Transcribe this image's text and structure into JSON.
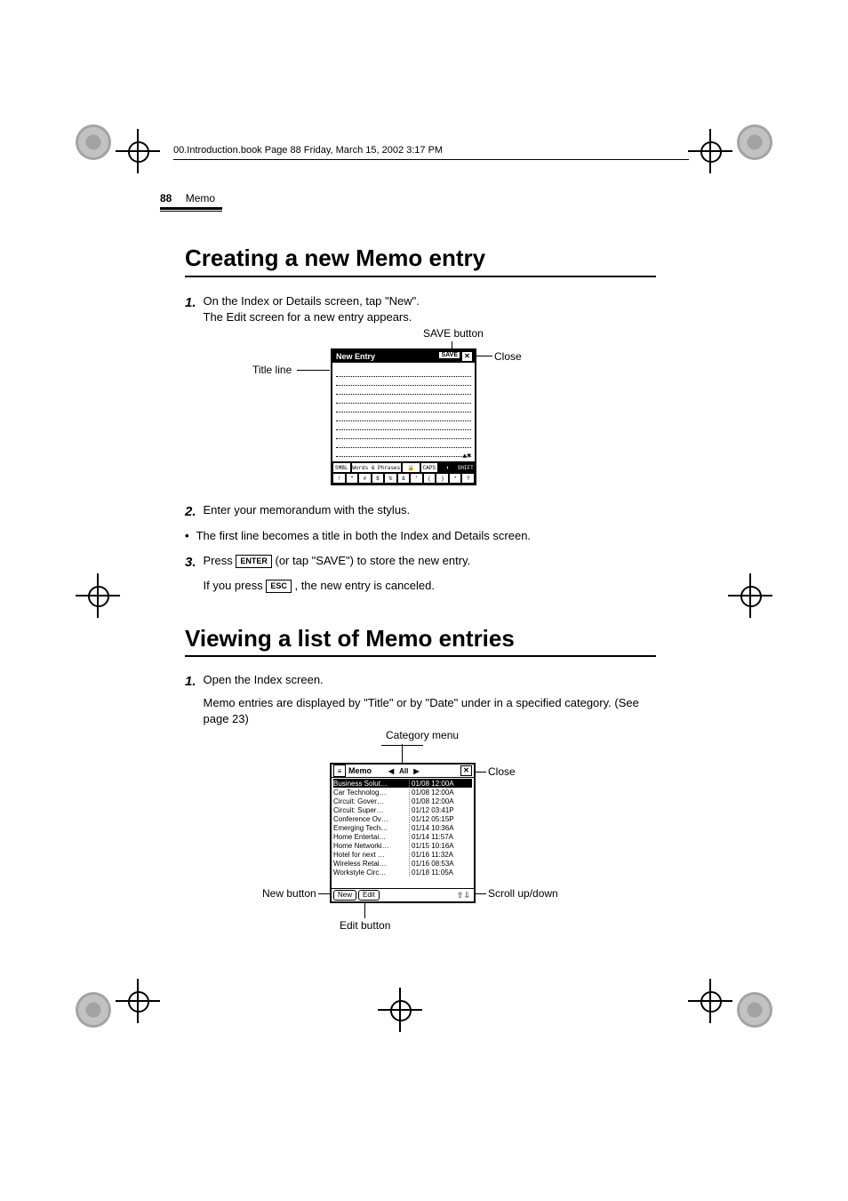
{
  "header_file_line": "00.Introduction.book  Page 88  Friday, March 15, 2002  3:17 PM",
  "running_head": {
    "page_number": "88",
    "section": "Memo"
  },
  "section1": {
    "title": "Creating a new Memo entry",
    "step1_a": "On the Index or Details screen, tap \"New\".",
    "step1_b": "The Edit screen for a new entry appears.",
    "step2": "Enter your memorandum with the stylus.",
    "bullet": "The first line becomes a title in both the Index and Details screen.",
    "step3_a": "Press ",
    "step3_b": " (or tap \"SAVE\") to store the new entry.",
    "step3_c": "If you press ",
    "step3_d": ", the new entry is canceled.",
    "key_enter": "ENTER",
    "key_esc": "ESC"
  },
  "fig1": {
    "title": "New Entry",
    "save": "SAVE",
    "close_x": "✕",
    "kbd_row1": [
      "SMBL",
      "Words & Phrases",
      "🔒",
      "CAPS",
      "⬆",
      "SHIFT"
    ],
    "kbd_row2": [
      "!",
      "\"",
      "#",
      "$",
      "%",
      "&",
      "'",
      "(",
      ")",
      "*",
      "?"
    ]
  },
  "callouts1": {
    "save_button": "SAVE button",
    "close": "Close",
    "title_line": "Title line"
  },
  "section2": {
    "title": "Viewing a list of Memo entries",
    "step1": "Open the Index screen.",
    "step1_para": "Memo entries are displayed by \"Title\" or by \"Date\" under in a specified category. (See page 23)"
  },
  "fig2": {
    "app_title": "Memo",
    "category": "All",
    "close_x": "✕",
    "rows": [
      {
        "title": "Business Solut…",
        "date": "01/08 12:00A",
        "selected": true
      },
      {
        "title": "Car Technolog…",
        "date": "01/08 12:00A"
      },
      {
        "title": "Circuit: Gover…",
        "date": "01/08 12:00A"
      },
      {
        "title": "Circuit: Super…",
        "date": "01/12 03:41P"
      },
      {
        "title": "Conference Ov…",
        "date": "01/12 05:15P"
      },
      {
        "title": "Emerging Tech…",
        "date": "01/14 10:36A"
      },
      {
        "title": "Home Entertai…",
        "date": "01/14 11:57A"
      },
      {
        "title": "Home Networki…",
        "date": "01/15 10:16A"
      },
      {
        "title": "Hotel for next …",
        "date": "01/16 11:32A"
      },
      {
        "title": "Wireless Retai…",
        "date": "01/16 08:53A"
      },
      {
        "title": "Workstyle Circ…",
        "date": "01/18 11:05A"
      }
    ],
    "new_btn": "New",
    "edit_btn": "Edit"
  },
  "callouts2": {
    "category_menu": "Category menu",
    "close": "Close",
    "new_button": "New button",
    "edit_button": "Edit button",
    "scroll": "Scroll up/down"
  }
}
